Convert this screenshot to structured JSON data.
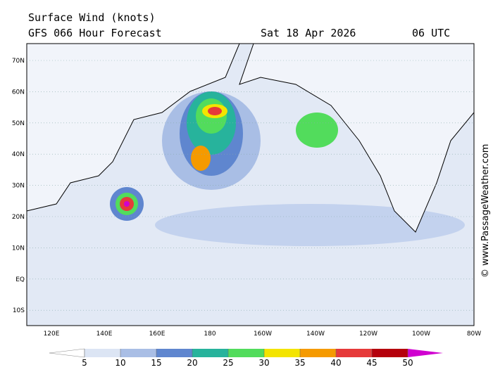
{
  "header": {
    "title": "Surface Wind (knots)",
    "subtitle": "GFS 066 Hour Forecast",
    "date": "Sat 18 Apr 2026",
    "time": "06 UTC"
  },
  "map": {
    "lat_labels": [
      "70N",
      "60N",
      "50N",
      "40N",
      "30N",
      "20N",
      "10N",
      "EQ",
      "10S"
    ],
    "lon_labels": [
      "120E",
      "140E",
      "160E",
      "180",
      "160W",
      "140W",
      "120W",
      "100W",
      "80W"
    ],
    "watermark": "© www.PassageWeather.com"
  },
  "colorbar": {
    "ticks": [
      5,
      10,
      15,
      20,
      25,
      30,
      35,
      40,
      45,
      50
    ],
    "colors": [
      "#ffffff",
      "#dce5f4",
      "#a9bee5",
      "#5f86cf",
      "#27b39c",
      "#52dc5c",
      "#f3e400",
      "#f59a00",
      "#e63a3a",
      "#b5000c",
      "#d000d0"
    ]
  }
}
